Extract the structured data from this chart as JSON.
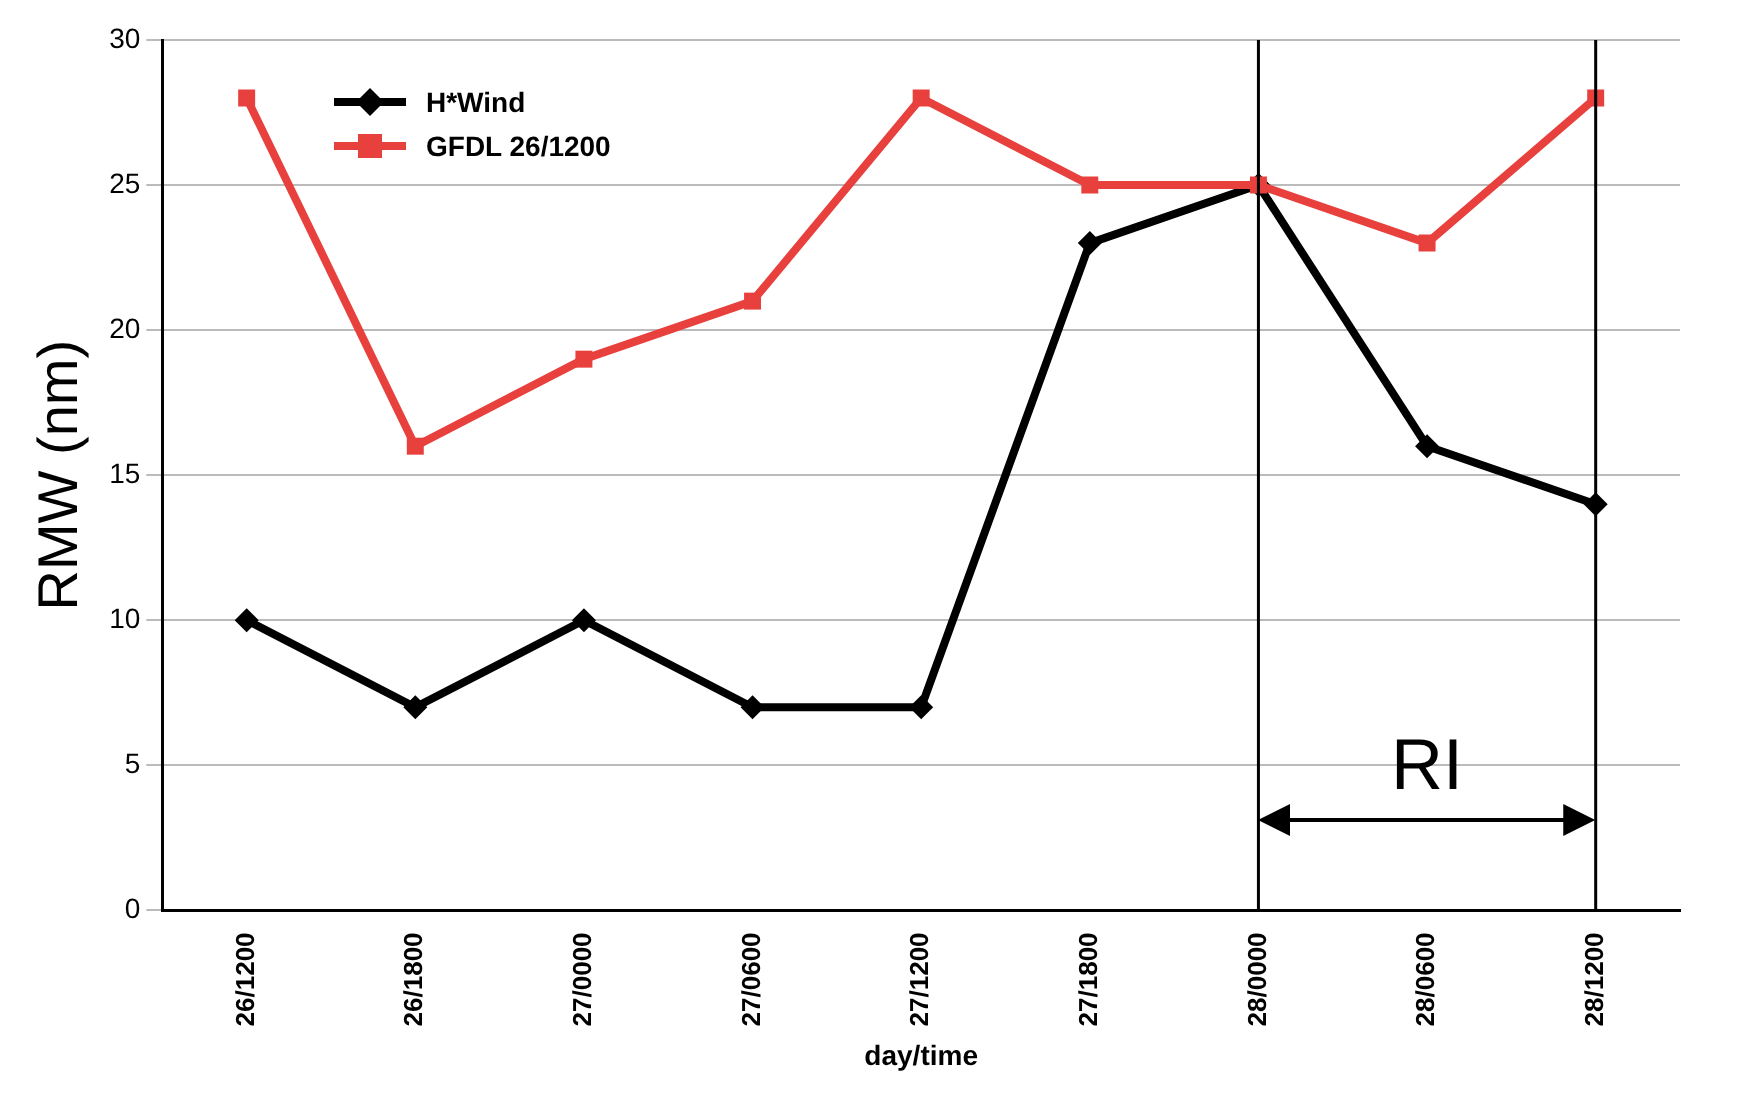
{
  "chart_data": {
    "type": "line",
    "xlabel": "day/time",
    "ylabel": "RMW (nm)",
    "categories": [
      "26/1200",
      "26/1800",
      "27/0000",
      "27/0600",
      "27/1200",
      "27/1800",
      "28/0000",
      "28/0600",
      "28/1200"
    ],
    "series": [
      {
        "name": "H*Wind",
        "color": "#000000",
        "marker": "diamond",
        "values": [
          10,
          7,
          10,
          7,
          7,
          23,
          25,
          16,
          14
        ]
      },
      {
        "name": "GFDL 26/1200",
        "color": "#e8403c",
        "marker": "square",
        "values": [
          28,
          16,
          19,
          21,
          28,
          25,
          25,
          23,
          28
        ]
      }
    ],
    "ylim": [
      0,
      30
    ],
    "yticks": [
      0,
      5,
      10,
      15,
      20,
      25,
      30
    ],
    "grid": "y",
    "legend": "top left",
    "line_style": "solid",
    "ref_lines": [
      {
        "axis": "x",
        "value": "28/0000",
        "color": "#000000"
      },
      {
        "axis": "x",
        "value": "28/1200",
        "color": "#000000"
      }
    ],
    "annotations": [
      "RI"
    ]
  }
}
